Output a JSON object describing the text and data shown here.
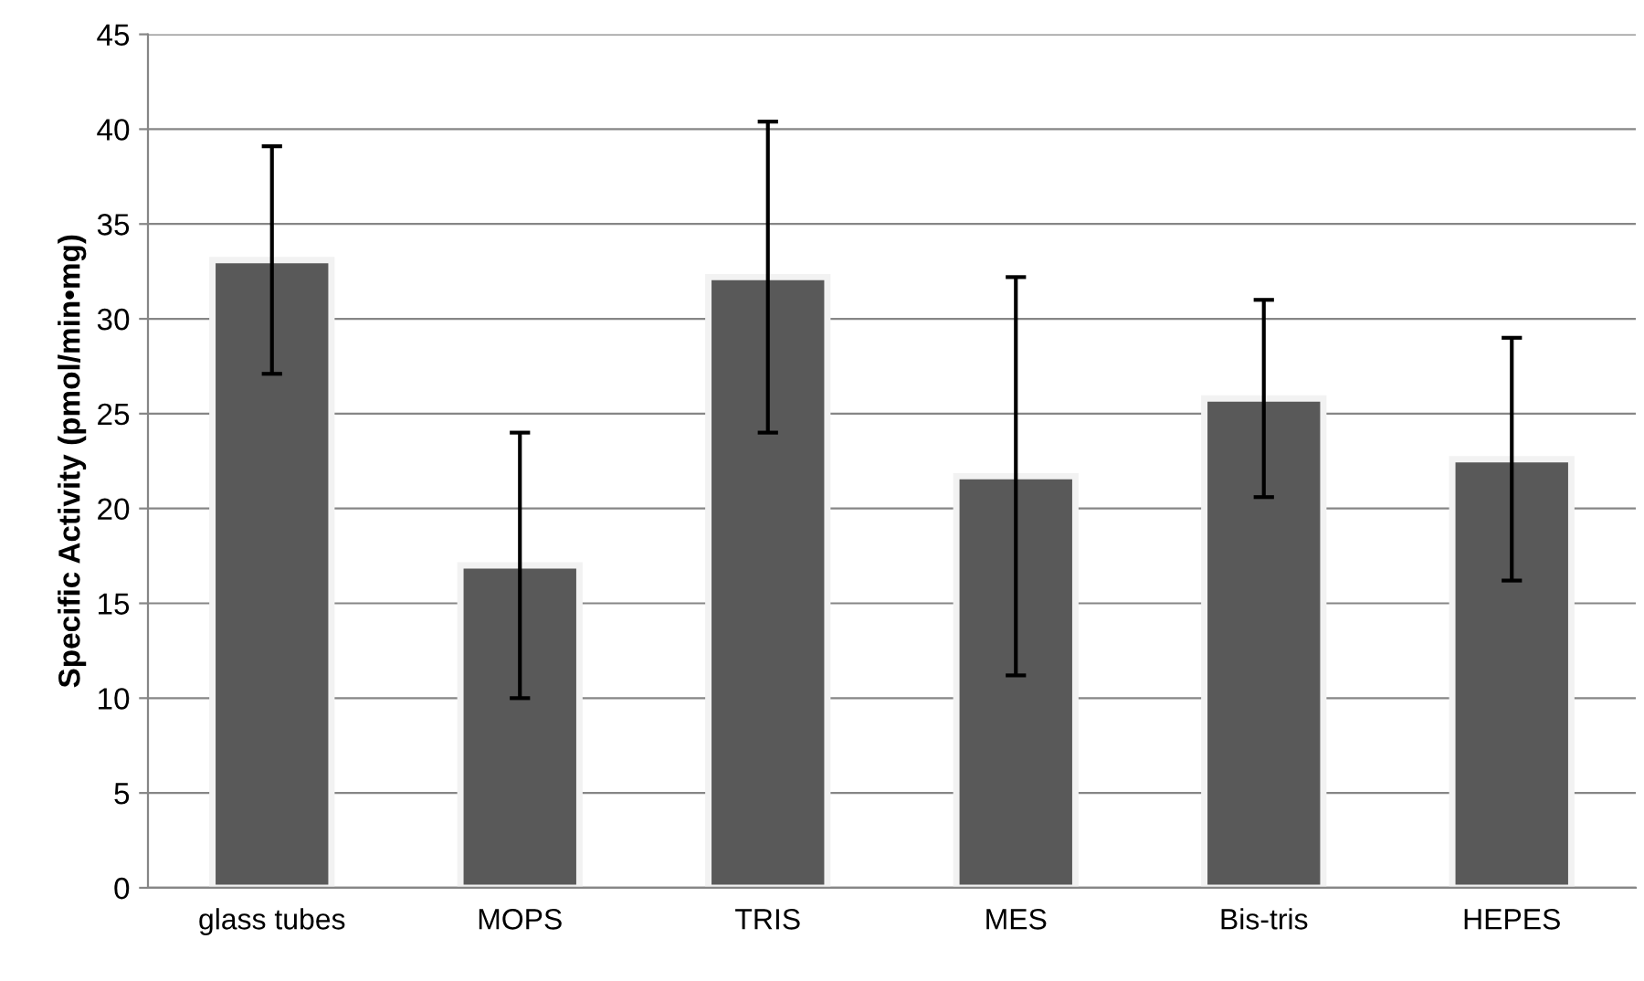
{
  "chart_data": {
    "type": "bar",
    "ylabel": "Specific Activity (pmol/min•mg)",
    "categories": [
      "glass tubes",
      "MOPS",
      "TRIS",
      "MES",
      "Bis-tris",
      "HEPES"
    ],
    "values": [
      33.1,
      17.0,
      32.2,
      21.7,
      25.8,
      22.6
    ],
    "errors": [
      6.0,
      7.0,
      8.2,
      10.5,
      5.2,
      6.4
    ],
    "color": "#595959",
    "ylim": [
      0,
      45
    ],
    "yticks": [
      0,
      5,
      10,
      15,
      20,
      25,
      30,
      35,
      40,
      45
    ],
    "grid": "y"
  }
}
